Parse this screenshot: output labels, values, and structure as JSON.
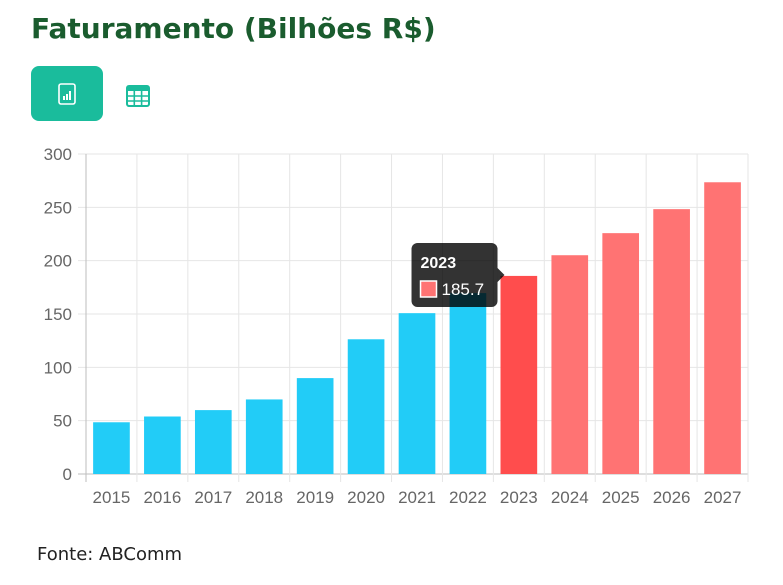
{
  "header": {
    "title": "Faturamento (Bilhões R$)"
  },
  "toggle": {
    "chart_icon": "bar-chart-icon",
    "table_icon": "table-grid-icon"
  },
  "colors": {
    "accent": "#1abc9c",
    "title": "#1a5c2e",
    "actual": "#22ccf7",
    "forecast": "#ff7373",
    "highlight": "#ff4d4d"
  },
  "chart_data": {
    "type": "bar",
    "title": "Faturamento (Bilhões R$)",
    "xlabel": "",
    "ylabel": "",
    "categories": [
      "2015",
      "2016",
      "2017",
      "2018",
      "2019",
      "2020",
      "2021",
      "2022",
      "2023",
      "2024",
      "2025",
      "2026",
      "2027"
    ],
    "values": [
      48.5,
      53.9,
      59.9,
      69.9,
      89.9,
      126.3,
      150.8,
      169.6,
      185.7,
      205.1,
      225.8,
      248.3,
      273.5
    ],
    "projected_from": "2023",
    "ylim": [
      0,
      300
    ],
    "yticks": [
      0,
      50,
      100,
      150,
      200,
      250,
      300
    ],
    "grid": true,
    "legend": "none",
    "tooltip": {
      "category": "2023",
      "value": "185.7"
    }
  },
  "footer": {
    "source": "Fonte: ABComm"
  }
}
